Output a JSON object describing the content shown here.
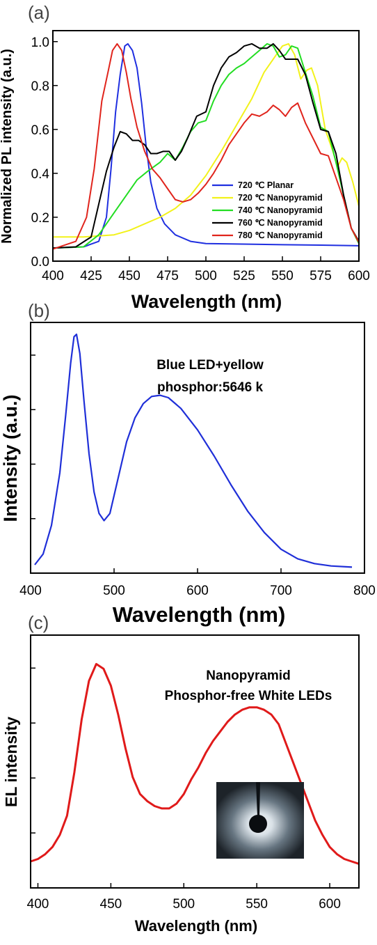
{
  "chart_data": [
    {
      "type": "line",
      "panel_label": "(a)",
      "xlabel": "Wavelength (nm)",
      "ylabel": "Normalized PL intensity (a.u.)",
      "xlim": [
        400,
        600
      ],
      "ylim": [
        0,
        1.05
      ],
      "xticks": [
        400,
        425,
        450,
        475,
        500,
        525,
        550,
        575,
        600
      ],
      "yticks": [
        0.0,
        0.2,
        0.4,
        0.6,
        0.8,
        1.0
      ],
      "ytick_labels": [
        "0.0",
        "0.2",
        "0.4",
        "0.6",
        "0.8",
        "1.0"
      ],
      "legend_position": "lower-right",
      "series": [
        {
          "name": "720 ℃ Planar",
          "color": "#1f2fe0",
          "points": [
            [
              400,
              0.06
            ],
            [
              420,
              0.065
            ],
            [
              430,
              0.09
            ],
            [
              435,
              0.2
            ],
            [
              438,
              0.42
            ],
            [
              441,
              0.68
            ],
            [
              444,
              0.85
            ],
            [
              447,
              0.98
            ],
            [
              449,
              0.99
            ],
            [
              452,
              0.96
            ],
            [
              455,
              0.88
            ],
            [
              458,
              0.72
            ],
            [
              461,
              0.52
            ],
            [
              464,
              0.36
            ],
            [
              468,
              0.24
            ],
            [
              473,
              0.17
            ],
            [
              480,
              0.12
            ],
            [
              490,
              0.09
            ],
            [
              500,
              0.08
            ],
            [
              520,
              0.078
            ],
            [
              550,
              0.075
            ],
            [
              575,
              0.073
            ],
            [
              600,
              0.07
            ]
          ]
        },
        {
          "name": "720 ℃ Nanopyramid",
          "color": "#f2f21a",
          "points": [
            [
              400,
              0.11
            ],
            [
              420,
              0.11
            ],
            [
              440,
              0.12
            ],
            [
              450,
              0.14
            ],
            [
              460,
              0.17
            ],
            [
              470,
              0.2
            ],
            [
              480,
              0.24
            ],
            [
              490,
              0.3
            ],
            [
              500,
              0.39
            ],
            [
              510,
              0.5
            ],
            [
              520,
              0.62
            ],
            [
              530,
              0.74
            ],
            [
              538,
              0.86
            ],
            [
              545,
              0.93
            ],
            [
              550,
              0.98
            ],
            [
              554,
              0.99
            ],
            [
              558,
              0.94
            ],
            [
              562,
              0.83
            ],
            [
              566,
              0.87
            ],
            [
              569,
              0.88
            ],
            [
              573,
              0.8
            ],
            [
              578,
              0.6
            ],
            [
              583,
              0.5
            ],
            [
              586,
              0.43
            ],
            [
              589,
              0.47
            ],
            [
              592,
              0.45
            ],
            [
              596,
              0.36
            ],
            [
              600,
              0.25
            ]
          ]
        },
        {
          "name": "740 ℃ Nanopyramid",
          "color": "#22dd22",
          "points": [
            [
              400,
              0.06
            ],
            [
              420,
              0.065
            ],
            [
              430,
              0.12
            ],
            [
              440,
              0.22
            ],
            [
              448,
              0.3
            ],
            [
              455,
              0.37
            ],
            [
              462,
              0.41
            ],
            [
              470,
              0.45
            ],
            [
              475,
              0.49
            ],
            [
              480,
              0.46
            ],
            [
              485,
              0.52
            ],
            [
              490,
              0.59
            ],
            [
              495,
              0.63
            ],
            [
              500,
              0.64
            ],
            [
              505,
              0.73
            ],
            [
              510,
              0.8
            ],
            [
              515,
              0.85
            ],
            [
              520,
              0.88
            ],
            [
              525,
              0.9
            ],
            [
              530,
              0.93
            ],
            [
              535,
              0.96
            ],
            [
              540,
              0.99
            ],
            [
              544,
              0.98
            ],
            [
              548,
              0.93
            ],
            [
              552,
              0.94
            ],
            [
              556,
              0.98
            ],
            [
              560,
              0.97
            ],
            [
              565,
              0.86
            ],
            [
              570,
              0.75
            ],
            [
              575,
              0.61
            ],
            [
              580,
              0.59
            ],
            [
              585,
              0.45
            ],
            [
              590,
              0.3
            ],
            [
              595,
              0.15
            ],
            [
              600,
              0.08
            ]
          ]
        },
        {
          "name": "760 ℃ Nanopyramid",
          "color": "#000000",
          "points": [
            [
              400,
              0.06
            ],
            [
              415,
              0.065
            ],
            [
              425,
              0.11
            ],
            [
              430,
              0.26
            ],
            [
              435,
              0.41
            ],
            [
              440,
              0.52
            ],
            [
              444,
              0.59
            ],
            [
              448,
              0.58
            ],
            [
              452,
              0.55
            ],
            [
              456,
              0.55
            ],
            [
              460,
              0.53
            ],
            [
              464,
              0.49
            ],
            [
              468,
              0.49
            ],
            [
              472,
              0.5
            ],
            [
              476,
              0.5
            ],
            [
              480,
              0.46
            ],
            [
              484,
              0.5
            ],
            [
              488,
              0.56
            ],
            [
              494,
              0.66
            ],
            [
              500,
              0.68
            ],
            [
              505,
              0.8
            ],
            [
              510,
              0.88
            ],
            [
              515,
              0.93
            ],
            [
              520,
              0.95
            ],
            [
              525,
              0.98
            ],
            [
              530,
              0.99
            ],
            [
              535,
              0.97
            ],
            [
              540,
              0.97
            ],
            [
              544,
              0.99
            ],
            [
              548,
              0.96
            ],
            [
              552,
              0.92
            ],
            [
              556,
              0.92
            ],
            [
              560,
              0.92
            ],
            [
              565,
              0.85
            ],
            [
              570,
              0.72
            ],
            [
              575,
              0.6
            ],
            [
              580,
              0.59
            ],
            [
              585,
              0.49
            ],
            [
              590,
              0.3
            ],
            [
              595,
              0.15
            ],
            [
              600,
              0.09
            ]
          ]
        },
        {
          "name": "780 ℃ Nanopyramid",
          "color": "#e0241c",
          "points": [
            [
              400,
              0.055
            ],
            [
              415,
              0.09
            ],
            [
              422,
              0.2
            ],
            [
              427,
              0.42
            ],
            [
              432,
              0.73
            ],
            [
              436,
              0.86
            ],
            [
              439,
              0.96
            ],
            [
              442,
              0.99
            ],
            [
              445,
              0.96
            ],
            [
              448,
              0.86
            ],
            [
              451,
              0.74
            ],
            [
              455,
              0.61
            ],
            [
              460,
              0.5
            ],
            [
              465,
              0.42
            ],
            [
              470,
              0.38
            ],
            [
              475,
              0.33
            ],
            [
              480,
              0.28
            ],
            [
              485,
              0.27
            ],
            [
              490,
              0.28
            ],
            [
              495,
              0.31
            ],
            [
              500,
              0.35
            ],
            [
              505,
              0.4
            ],
            [
              510,
              0.46
            ],
            [
              515,
              0.53
            ],
            [
              520,
              0.58
            ],
            [
              525,
              0.63
            ],
            [
              530,
              0.67
            ],
            [
              535,
              0.66
            ],
            [
              540,
              0.68
            ],
            [
              544,
              0.71
            ],
            [
              548,
              0.69
            ],
            [
              552,
              0.66
            ],
            [
              556,
              0.7
            ],
            [
              560,
              0.72
            ],
            [
              565,
              0.63
            ],
            [
              570,
              0.56
            ],
            [
              575,
              0.49
            ],
            [
              580,
              0.48
            ],
            [
              585,
              0.38
            ],
            [
              590,
              0.28
            ],
            [
              595,
              0.15
            ],
            [
              600,
              0.085
            ]
          ]
        }
      ]
    },
    {
      "type": "line",
      "panel_label": "(b)",
      "xlabel": "Wavelength (nm)",
      "ylabel": "Intensity (a.u.)",
      "xlim": [
        400,
        800
      ],
      "ylim": [
        0,
        1.05
      ],
      "xticks": [
        400,
        500,
        600,
        700,
        800
      ],
      "annotation": [
        "Blue LED+yellow",
        "phosphor:5646 k"
      ],
      "series": [
        {
          "name": "",
          "color": "#1f2fd8",
          "points": [
            [
              405,
              0.035
            ],
            [
              415,
              0.08
            ],
            [
              425,
              0.2
            ],
            [
              435,
              0.42
            ],
            [
              442,
              0.66
            ],
            [
              448,
              0.88
            ],
            [
              452,
              0.99
            ],
            [
              455,
              1.0
            ],
            [
              459,
              0.92
            ],
            [
              464,
              0.72
            ],
            [
              470,
              0.5
            ],
            [
              476,
              0.34
            ],
            [
              482,
              0.25
            ],
            [
              488,
              0.22
            ],
            [
              495,
              0.25
            ],
            [
              505,
              0.4
            ],
            [
              515,
              0.55
            ],
            [
              525,
              0.65
            ],
            [
              535,
              0.71
            ],
            [
              545,
              0.74
            ],
            [
              555,
              0.745
            ],
            [
              565,
              0.735
            ],
            [
              580,
              0.69
            ],
            [
              600,
              0.6
            ],
            [
              620,
              0.49
            ],
            [
              640,
              0.37
            ],
            [
              660,
              0.26
            ],
            [
              680,
              0.17
            ],
            [
              700,
              0.1
            ],
            [
              720,
              0.06
            ],
            [
              740,
              0.04
            ],
            [
              760,
              0.03
            ],
            [
              785,
              0.025
            ]
          ]
        }
      ]
    },
    {
      "type": "line",
      "panel_label": "(c)",
      "xlabel": "Wavelength (nm)",
      "ylabel": "EL intensity",
      "xlim": [
        395,
        620
      ],
      "ylim": [
        0,
        1.05
      ],
      "xticks": [
        400,
        450,
        500,
        550,
        600
      ],
      "annotation": [
        "Nanopyramid",
        "Phosphor-free White LEDs"
      ],
      "inset": "photo of a lit LED with probe",
      "series": [
        {
          "name": "",
          "color": "#e01a1a",
          "points": [
            [
              395,
              0.11
            ],
            [
              400,
              0.12
            ],
            [
              405,
              0.14
            ],
            [
              410,
              0.17
            ],
            [
              415,
              0.22
            ],
            [
              420,
              0.3
            ],
            [
              425,
              0.48
            ],
            [
              430,
              0.7
            ],
            [
              435,
              0.86
            ],
            [
              440,
              0.93
            ],
            [
              445,
              0.91
            ],
            [
              450,
              0.84
            ],
            [
              455,
              0.72
            ],
            [
              460,
              0.58
            ],
            [
              465,
              0.46
            ],
            [
              470,
              0.39
            ],
            [
              475,
              0.36
            ],
            [
              480,
              0.34
            ],
            [
              485,
              0.33
            ],
            [
              490,
              0.33
            ],
            [
              495,
              0.35
            ],
            [
              500,
              0.39
            ],
            [
              505,
              0.45
            ],
            [
              510,
              0.5
            ],
            [
              515,
              0.56
            ],
            [
              520,
              0.61
            ],
            [
              525,
              0.65
            ],
            [
              530,
              0.69
            ],
            [
              535,
              0.72
            ],
            [
              540,
              0.74
            ],
            [
              545,
              0.75
            ],
            [
              550,
              0.75
            ],
            [
              555,
              0.74
            ],
            [
              560,
              0.72
            ],
            [
              565,
              0.68
            ],
            [
              570,
              0.6
            ],
            [
              575,
              0.52
            ],
            [
              580,
              0.44
            ],
            [
              585,
              0.36
            ],
            [
              590,
              0.28
            ],
            [
              595,
              0.22
            ],
            [
              600,
              0.17
            ],
            [
              605,
              0.14
            ],
            [
              610,
              0.12
            ],
            [
              615,
              0.11
            ],
            [
              620,
              0.1
            ]
          ]
        }
      ]
    }
  ]
}
